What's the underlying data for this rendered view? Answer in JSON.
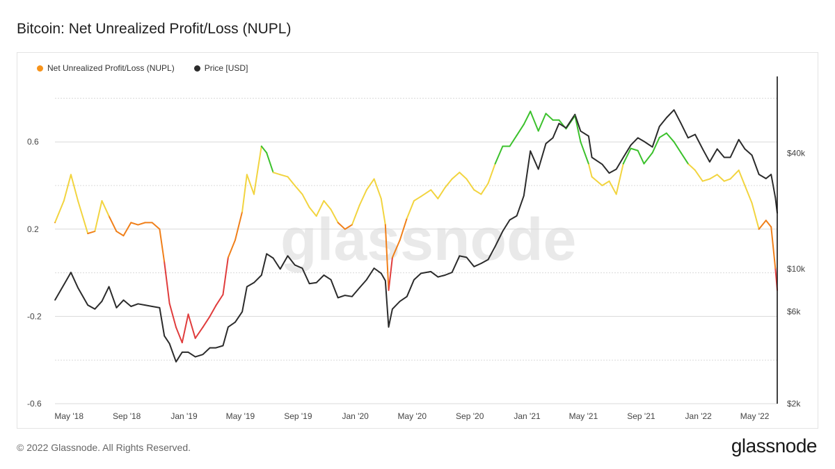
{
  "header": {
    "title": "Bitcoin: Net Unrealized Profit/Loss (NUPL)"
  },
  "footer": {
    "copyright": "© 2022 Glassnode. All Rights Reserved.",
    "logo_text": "glassnode"
  },
  "watermark": "glassnode",
  "colors": {
    "price": "#2b2b2b",
    "nupl_legend": "#f7931a",
    "zone_capitulation": "#e03c3c",
    "zone_hope_fear": "#f07f19",
    "zone_optimism": "#f2d43f",
    "zone_belief": "#3bc12c"
  },
  "chart_data": {
    "type": "line",
    "title": "Bitcoin: Net Unrealized Profit/Loss (NUPL)",
    "legend_placement": "top-left",
    "grid": true,
    "x_ticks": [
      "May '18",
      "Sep '18",
      "Jan '19",
      "May '19",
      "Sep '19",
      "Jan '20",
      "May '20",
      "Sep '20",
      "Jan '21",
      "May '21",
      "Sep '21",
      "Jan '22",
      "May '22"
    ],
    "y_left": {
      "ticks": [
        "0.6",
        "0.2",
        "-0.2",
        "-0.6"
      ],
      "range": [
        -0.6,
        0.9
      ]
    },
    "y_right": {
      "scale": "log",
      "ticks": [
        "$40k",
        "$10k",
        "$6k",
        "$2k"
      ],
      "range": [
        2000,
        100000
      ]
    },
    "series": [
      {
        "name": "Net Unrealized Profit/Loss (NUPL)",
        "axis": "left",
        "dates": [
          "2018-04-01",
          "2018-04-20",
          "2018-05-05",
          "2018-05-20",
          "2018-06-10",
          "2018-06-25",
          "2018-07-10",
          "2018-07-25",
          "2018-08-10",
          "2018-08-25",
          "2018-09-10",
          "2018-09-25",
          "2018-10-10",
          "2018-10-25",
          "2018-11-10",
          "2018-11-20",
          "2018-12-01",
          "2018-12-15",
          "2018-12-28",
          "2019-01-10",
          "2019-01-25",
          "2019-02-10",
          "2019-02-25",
          "2019-03-10",
          "2019-03-25",
          "2019-04-05",
          "2019-04-20",
          "2019-05-05",
          "2019-05-15",
          "2019-05-30",
          "2019-06-15",
          "2019-06-26",
          "2019-07-10",
          "2019-07-25",
          "2019-08-10",
          "2019-08-25",
          "2019-09-10",
          "2019-09-25",
          "2019-10-10",
          "2019-10-26",
          "2019-11-10",
          "2019-11-25",
          "2019-12-10",
          "2019-12-25",
          "2020-01-10",
          "2020-01-25",
          "2020-02-10",
          "2020-02-25",
          "2020-03-05",
          "2020-03-12",
          "2020-03-20",
          "2020-04-05",
          "2020-04-20",
          "2020-05-05",
          "2020-05-20",
          "2020-06-10",
          "2020-06-25",
          "2020-07-10",
          "2020-07-25",
          "2020-08-10",
          "2020-08-25",
          "2020-09-10",
          "2020-09-25",
          "2020-10-10",
          "2020-10-25",
          "2020-11-10",
          "2020-11-25",
          "2020-12-10",
          "2020-12-25",
          "2021-01-08",
          "2021-01-25",
          "2021-02-10",
          "2021-02-25",
          "2021-03-10",
          "2021-03-25",
          "2021-04-13",
          "2021-04-25",
          "2021-05-12",
          "2021-05-19",
          "2021-06-10",
          "2021-06-25",
          "2021-07-10",
          "2021-07-25",
          "2021-08-10",
          "2021-08-25",
          "2021-09-07",
          "2021-09-25",
          "2021-10-10",
          "2021-10-25",
          "2021-11-10",
          "2021-11-25",
          "2021-12-10",
          "2021-12-25",
          "2022-01-10",
          "2022-01-25",
          "2022-02-10",
          "2022-02-25",
          "2022-03-10",
          "2022-03-28",
          "2022-04-10",
          "2022-04-25",
          "2022-05-10",
          "2022-05-25",
          "2022-06-05",
          "2022-06-14",
          "2022-06-18"
        ],
        "values": [
          0.23,
          0.33,
          0.45,
          0.33,
          0.18,
          0.19,
          0.33,
          0.26,
          0.19,
          0.17,
          0.23,
          0.22,
          0.23,
          0.23,
          0.2,
          0.05,
          -0.14,
          -0.25,
          -0.32,
          -0.19,
          -0.3,
          -0.25,
          -0.2,
          -0.15,
          -0.1,
          0.07,
          0.15,
          0.28,
          0.45,
          0.36,
          0.58,
          0.55,
          0.46,
          0.45,
          0.44,
          0.4,
          0.36,
          0.3,
          0.26,
          0.33,
          0.29,
          0.23,
          0.2,
          0.22,
          0.31,
          0.38,
          0.43,
          0.34,
          0.22,
          -0.08,
          0.07,
          0.15,
          0.25,
          0.33,
          0.35,
          0.38,
          0.34,
          0.39,
          0.43,
          0.46,
          0.43,
          0.38,
          0.36,
          0.41,
          0.5,
          0.58,
          0.58,
          0.63,
          0.68,
          0.74,
          0.65,
          0.73,
          0.7,
          0.7,
          0.66,
          0.72,
          0.6,
          0.5,
          0.44,
          0.4,
          0.42,
          0.36,
          0.5,
          0.57,
          0.56,
          0.5,
          0.55,
          0.62,
          0.64,
          0.6,
          0.55,
          0.5,
          0.47,
          0.42,
          0.43,
          0.45,
          0.42,
          0.43,
          0.47,
          0.4,
          0.32,
          0.2,
          0.24,
          0.21,
          0.02,
          -0.08
        ]
      },
      {
        "name": "Price [USD]",
        "axis": "right",
        "dates": [
          "2018-04-01",
          "2018-04-20",
          "2018-05-05",
          "2018-05-20",
          "2018-06-10",
          "2018-06-25",
          "2018-07-10",
          "2018-07-25",
          "2018-08-10",
          "2018-08-25",
          "2018-09-10",
          "2018-09-25",
          "2018-10-10",
          "2018-10-25",
          "2018-11-10",
          "2018-11-20",
          "2018-12-01",
          "2018-12-15",
          "2018-12-28",
          "2019-01-10",
          "2019-01-25",
          "2019-02-10",
          "2019-02-25",
          "2019-03-10",
          "2019-03-25",
          "2019-04-05",
          "2019-04-20",
          "2019-05-05",
          "2019-05-15",
          "2019-05-30",
          "2019-06-15",
          "2019-06-26",
          "2019-07-10",
          "2019-07-25",
          "2019-08-10",
          "2019-08-25",
          "2019-09-10",
          "2019-09-25",
          "2019-10-10",
          "2019-10-26",
          "2019-11-10",
          "2019-11-25",
          "2019-12-10",
          "2019-12-25",
          "2020-01-10",
          "2020-01-25",
          "2020-02-10",
          "2020-02-25",
          "2020-03-05",
          "2020-03-12",
          "2020-03-20",
          "2020-04-05",
          "2020-04-20",
          "2020-05-05",
          "2020-05-20",
          "2020-06-10",
          "2020-06-25",
          "2020-07-10",
          "2020-07-25",
          "2020-08-10",
          "2020-08-25",
          "2020-09-10",
          "2020-09-25",
          "2020-10-10",
          "2020-10-25",
          "2020-11-10",
          "2020-11-25",
          "2020-12-10",
          "2020-12-25",
          "2021-01-08",
          "2021-01-25",
          "2021-02-10",
          "2021-02-25",
          "2021-03-10",
          "2021-03-25",
          "2021-04-13",
          "2021-04-25",
          "2021-05-12",
          "2021-05-19",
          "2021-06-10",
          "2021-06-25",
          "2021-07-10",
          "2021-07-25",
          "2021-08-10",
          "2021-08-25",
          "2021-09-07",
          "2021-09-25",
          "2021-10-10",
          "2021-10-25",
          "2021-11-10",
          "2021-11-25",
          "2021-12-10",
          "2021-12-25",
          "2022-01-10",
          "2022-01-25",
          "2022-02-10",
          "2022-02-25",
          "2022-03-10",
          "2022-03-28",
          "2022-04-10",
          "2022-04-25",
          "2022-05-10",
          "2022-05-25",
          "2022-06-05",
          "2022-06-14",
          "2022-06-18"
        ],
        "values": [
          6900,
          8300,
          9600,
          8000,
          6500,
          6200,
          6800,
          8100,
          6300,
          6900,
          6400,
          6600,
          6500,
          6400,
          6300,
          4500,
          4100,
          3300,
          3700,
          3700,
          3500,
          3600,
          3900,
          3900,
          4000,
          5000,
          5300,
          6000,
          8100,
          8500,
          9300,
          12000,
          11400,
          10000,
          11700,
          10500,
          10100,
          8400,
          8500,
          9300,
          8800,
          7100,
          7300,
          7200,
          8000,
          8800,
          10100,
          9500,
          8700,
          5000,
          6200,
          6800,
          7200,
          8800,
          9500,
          9700,
          9100,
          9300,
          9600,
          11700,
          11500,
          10300,
          10700,
          11200,
          13100,
          15700,
          18000,
          18900,
          24000,
          41000,
          33000,
          44800,
          48000,
          57000,
          54000,
          63500,
          52000,
          49000,
          38000,
          35000,
          31500,
          33000,
          38000,
          44000,
          48000,
          46000,
          43000,
          55000,
          61000,
          67000,
          57000,
          48000,
          50000,
          42000,
          36000,
          42000,
          38000,
          38000,
          47000,
          42000,
          39000,
          31000,
          29500,
          31000,
          23500,
          19500
        ]
      }
    ]
  }
}
